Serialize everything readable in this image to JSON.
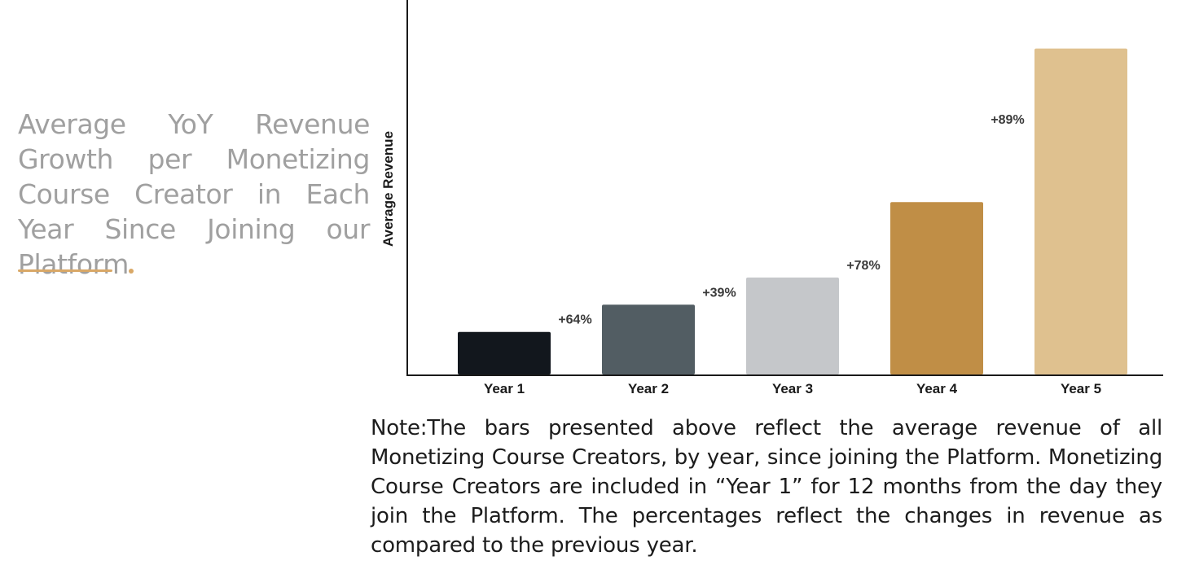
{
  "headline": "Average YoY Revenue Growth per Monetizing Course Creator in Each Year Since Joining our Platform",
  "note": "Note:The bars presented above reflect the average revenue of all Monetizing Course Creators, by year, since joining the Platform. Monetizing Course Creators are included in “Year 1” for 12 months from the day they join the Platform. The percentages reflect the changes in revenue as compared to the previous year.",
  "colors": {
    "accent": "#d9a867",
    "headline": "#a0a0a0",
    "bars": [
      "#12171d",
      "#525d63",
      "#c5c7ca",
      "#c08e46",
      "#dfc18f"
    ]
  },
  "chart_data": {
    "type": "bar",
    "title": "",
    "xlabel": "",
    "ylabel": "Average Revenue",
    "categories": [
      "Year 1",
      "Year 2",
      "Year 3",
      "Year 4",
      "Year 5"
    ],
    "values": [
      1.0,
      1.64,
      2.28,
      4.05,
      7.66
    ],
    "growth_labels": [
      "",
      "+64%",
      "+39%",
      "+78%",
      "+89%"
    ],
    "ylim": [
      0,
      8.8
    ],
    "grid": false,
    "y_ticks_shown": false
  }
}
